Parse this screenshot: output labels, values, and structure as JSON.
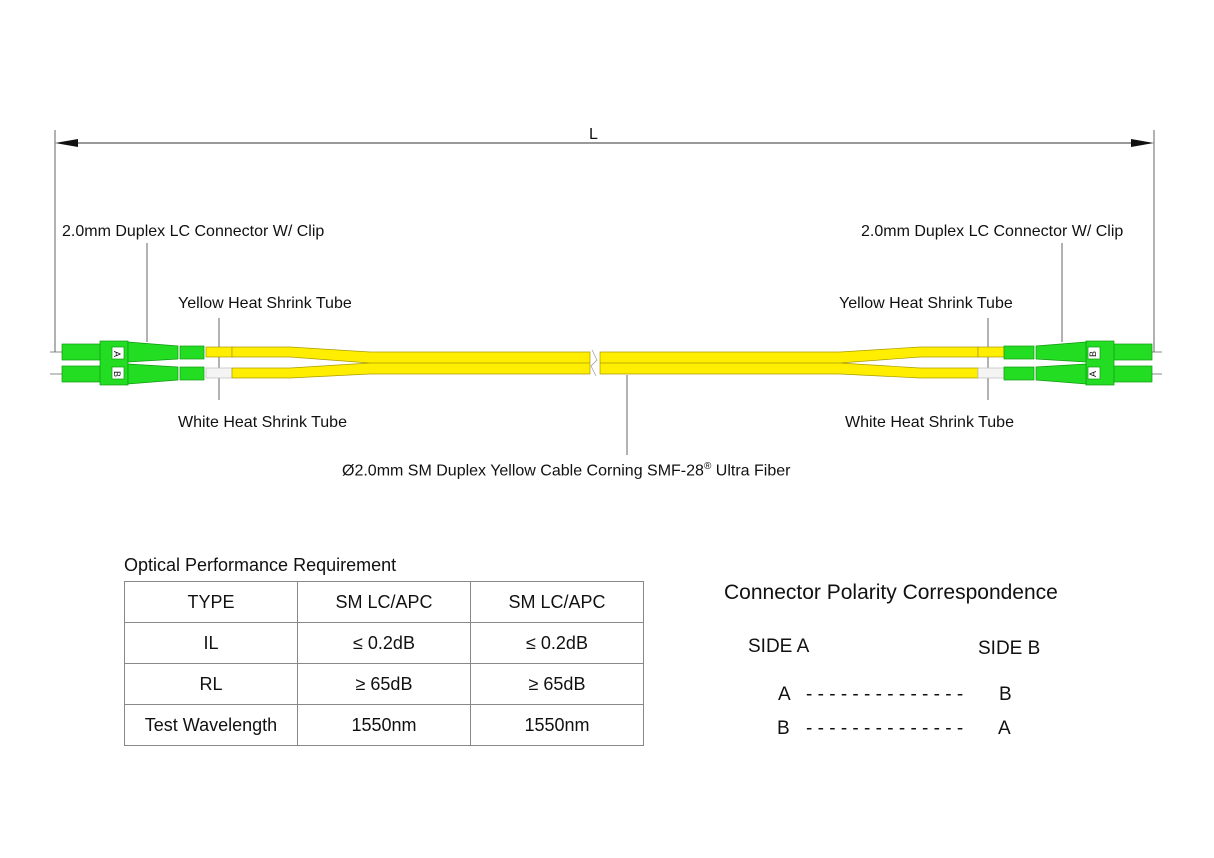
{
  "dimension": {
    "length_label": "L"
  },
  "labels": {
    "connector_left": "2.0mm Duplex LC Connector W/ Clip",
    "connector_right": "2.0mm Duplex LC Connector W/ Clip",
    "yellow_tube_left": "Yellow Heat Shrink Tube",
    "yellow_tube_right": "Yellow Heat Shrink Tube",
    "white_tube_left": "White Heat Shrink Tube",
    "white_tube_right": "White Heat Shrink Tube",
    "cable": "Ø2.0mm SM Duplex Yellow Cable  Corning SMF-28",
    "cable_reg": "®",
    "cable_suffix": " Ultra Fiber"
  },
  "connector_marks": {
    "left_top": "A",
    "left_bottom": "B",
    "right_top": "B",
    "right_bottom": "A"
  },
  "colors": {
    "connector": "#22dd22",
    "cable": "#ffee00",
    "white_tube": "#f4f4f4"
  },
  "table": {
    "title": "Optical Performance Requirement",
    "rows": [
      [
        "TYPE",
        "SM LC/APC",
        "SM LC/APC"
      ],
      [
        "IL",
        "≤ 0.2dB",
        "≤ 0.2dB"
      ],
      [
        "RL",
        "≥ 65dB",
        "≥ 65dB"
      ],
      [
        "Test Wavelength",
        "1550nm",
        "1550nm"
      ]
    ]
  },
  "polarity": {
    "title": "Connector Polarity Correspondence",
    "side_a": "SIDE A",
    "side_b": "SIDE B",
    "pairs": [
      {
        "a": "A",
        "dashes": "- - - - - - - - - - - - - -",
        "b": "B"
      },
      {
        "a": "B",
        "dashes": "- - - - - - - - - - - - - -",
        "b": "A"
      }
    ]
  }
}
